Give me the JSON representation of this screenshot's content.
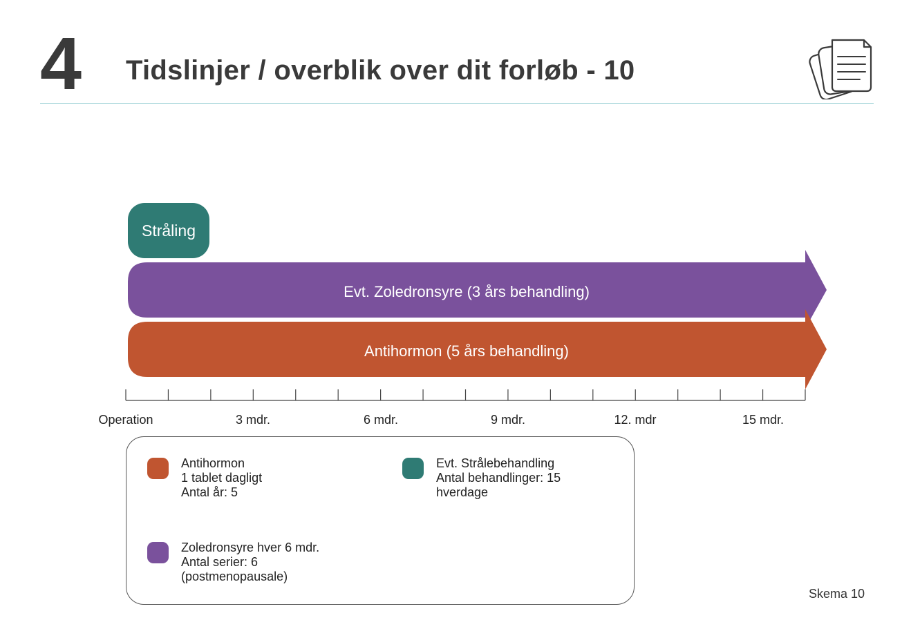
{
  "header": {
    "chapter_number": "4",
    "title": "Tidslinjer / overblik over dit forløb - 10",
    "icon": "documents-icon",
    "rule_color": "#8cc9cf"
  },
  "timeline": {
    "bars": [
      {
        "id": "straaling",
        "label": "Stråling",
        "color": "#2f7b74",
        "shape": "rounded-pill"
      },
      {
        "id": "zoledronsyre",
        "label": "Evt. Zoledronsyre (3 års behandling)",
        "color": "#7a519c",
        "shape": "arrow"
      },
      {
        "id": "antihormon",
        "label": "Antihormon (5 års behandling)",
        "color": "#c05530",
        "shape": "arrow"
      }
    ],
    "axis": {
      "tick_labels": [
        "Operation",
        "3 mdr.",
        "6 mdr.",
        "9 mdr.",
        "12. mdr",
        "15 mdr."
      ]
    }
  },
  "legend": {
    "items": [
      {
        "color": "#c05530",
        "lines": [
          "Antihormon",
          "1 tablet dagligt",
          "Antal år: 5"
        ]
      },
      {
        "color": "#2f7b74",
        "lines": [
          "Evt. Strålebehandling",
          "Antal behandlinger: 15",
          "hverdage"
        ]
      },
      {
        "color": "#7a519c",
        "lines": [
          "Zoledronsyre hver 6 mdr.",
          "Antal serier: 6",
          "(postmenopausale)"
        ]
      }
    ]
  },
  "footer": {
    "label": "Skema 10"
  }
}
